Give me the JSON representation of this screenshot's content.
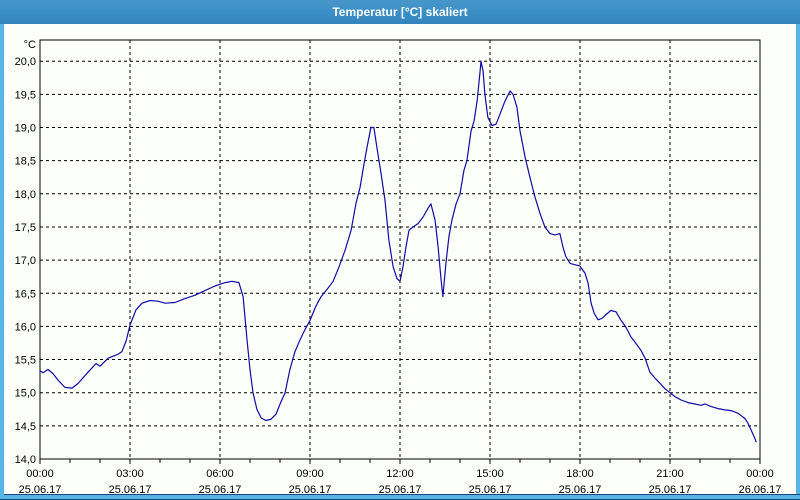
{
  "window": {
    "title": "Temperatur [°C] skaliert"
  },
  "colors": {
    "titlebar_blue": "#3a8ec6",
    "window_border": "#57b5e6",
    "window_border_dark_edge": "#14477a",
    "background": "#fdfffb",
    "line": "#0d0da8",
    "grid": "#000000",
    "text": "#000000",
    "title_text": "#ffffff"
  },
  "chart_data": {
    "type": "line",
    "title": "Temperatur [°C] skaliert",
    "xlabel": "",
    "ylabel": "°C",
    "unit_label": "°C",
    "grid": "dashed",
    "legend": "none",
    "ylim": [
      14.0,
      20.32
    ],
    "xlim_hours": [
      0,
      24
    ],
    "y_ticks": [
      {
        "value": 20.0,
        "label": "20,0"
      },
      {
        "value": 19.5,
        "label": "19,5"
      },
      {
        "value": 19.0,
        "label": "19,0"
      },
      {
        "value": 18.5,
        "label": "18,5"
      },
      {
        "value": 18.0,
        "label": "18,0"
      },
      {
        "value": 17.5,
        "label": "17,5"
      },
      {
        "value": 17.0,
        "label": "17,0"
      },
      {
        "value": 16.5,
        "label": "16,5"
      },
      {
        "value": 16.0,
        "label": "16,0"
      },
      {
        "value": 15.5,
        "label": "15,5"
      },
      {
        "value": 15.0,
        "label": "15,0"
      },
      {
        "value": 14.5,
        "label": "14,5"
      },
      {
        "value": 14.0,
        "label": "14,0"
      }
    ],
    "x_ticks": [
      {
        "hour": 0,
        "time": "00:00",
        "date": "25.06.17"
      },
      {
        "hour": 3,
        "time": "03:00",
        "date": "25.06.17"
      },
      {
        "hour": 6,
        "time": "06:00",
        "date": "25.06.17"
      },
      {
        "hour": 9,
        "time": "09:00",
        "date": "25.06.17"
      },
      {
        "hour": 12,
        "time": "12:00",
        "date": "25.06.17"
      },
      {
        "hour": 15,
        "time": "15:00",
        "date": "25.06.17"
      },
      {
        "hour": 18,
        "time": "18:00",
        "date": "25.06.17"
      },
      {
        "hour": 21,
        "time": "21:00",
        "date": "25.06.17"
      },
      {
        "hour": 24,
        "time": "00:00",
        "date": "26.06.17"
      }
    ],
    "minor_tick_every_hours": 1,
    "series": [
      {
        "name": "Temperatur",
        "color": "#0d0da8",
        "points": [
          [
            0.0,
            15.33
          ],
          [
            0.1,
            15.3
          ],
          [
            0.27,
            15.35
          ],
          [
            0.43,
            15.29
          ],
          [
            0.6,
            15.19
          ],
          [
            0.83,
            15.08
          ],
          [
            1.07,
            15.07
          ],
          [
            1.27,
            15.14
          ],
          [
            1.6,
            15.31
          ],
          [
            1.87,
            15.44
          ],
          [
            2.0,
            15.4
          ],
          [
            2.27,
            15.52
          ],
          [
            2.6,
            15.58
          ],
          [
            2.73,
            15.62
          ],
          [
            2.87,
            15.78
          ],
          [
            3.0,
            16.02
          ],
          [
            3.2,
            16.25
          ],
          [
            3.4,
            16.35
          ],
          [
            3.67,
            16.39
          ],
          [
            3.93,
            16.38
          ],
          [
            4.17,
            16.35
          ],
          [
            4.5,
            16.36
          ],
          [
            4.83,
            16.42
          ],
          [
            5.17,
            16.47
          ],
          [
            5.5,
            16.54
          ],
          [
            5.83,
            16.61
          ],
          [
            6.17,
            16.66
          ],
          [
            6.4,
            16.68
          ],
          [
            6.63,
            16.66
          ],
          [
            6.77,
            16.45
          ],
          [
            6.9,
            15.8
          ],
          [
            7.0,
            15.35
          ],
          [
            7.1,
            15.0
          ],
          [
            7.23,
            14.75
          ],
          [
            7.37,
            14.62
          ],
          [
            7.53,
            14.58
          ],
          [
            7.7,
            14.6
          ],
          [
            7.87,
            14.68
          ],
          [
            8.03,
            14.86
          ],
          [
            8.17,
            15.0
          ],
          [
            8.33,
            15.35
          ],
          [
            8.5,
            15.62
          ],
          [
            8.67,
            15.8
          ],
          [
            8.83,
            15.95
          ],
          [
            9.0,
            16.09
          ],
          [
            9.2,
            16.31
          ],
          [
            9.37,
            16.45
          ],
          [
            9.57,
            16.56
          ],
          [
            9.77,
            16.68
          ],
          [
            9.97,
            16.9
          ],
          [
            10.17,
            17.15
          ],
          [
            10.37,
            17.45
          ],
          [
            10.53,
            17.85
          ],
          [
            10.67,
            18.1
          ],
          [
            10.8,
            18.45
          ],
          [
            10.9,
            18.7
          ],
          [
            11.03,
            19.0
          ],
          [
            11.13,
            19.0
          ],
          [
            11.23,
            18.7
          ],
          [
            11.37,
            18.3
          ],
          [
            11.5,
            17.9
          ],
          [
            11.63,
            17.3
          ],
          [
            11.77,
            16.9
          ],
          [
            11.9,
            16.72
          ],
          [
            12.0,
            16.68
          ],
          [
            12.1,
            16.9
          ],
          [
            12.2,
            17.2
          ],
          [
            12.3,
            17.45
          ],
          [
            12.43,
            17.5
          ],
          [
            12.6,
            17.55
          ],
          [
            12.77,
            17.65
          ],
          [
            12.93,
            17.78
          ],
          [
            13.03,
            17.85
          ],
          [
            13.17,
            17.6
          ],
          [
            13.27,
            17.2
          ],
          [
            13.37,
            16.7
          ],
          [
            13.43,
            16.45
          ],
          [
            13.53,
            16.95
          ],
          [
            13.63,
            17.35
          ],
          [
            13.73,
            17.6
          ],
          [
            13.87,
            17.85
          ],
          [
            14.0,
            18.0
          ],
          [
            14.13,
            18.35
          ],
          [
            14.23,
            18.5
          ],
          [
            14.37,
            18.95
          ],
          [
            14.47,
            19.1
          ],
          [
            14.57,
            19.4
          ],
          [
            14.67,
            19.85
          ],
          [
            14.7,
            20.0
          ],
          [
            14.77,
            19.85
          ],
          [
            14.83,
            19.5
          ],
          [
            14.93,
            19.15
          ],
          [
            15.07,
            19.03
          ],
          [
            15.2,
            19.05
          ],
          [
            15.33,
            19.2
          ],
          [
            15.5,
            19.4
          ],
          [
            15.67,
            19.55
          ],
          [
            15.77,
            19.5
          ],
          [
            15.9,
            19.3
          ],
          [
            16.0,
            18.95
          ],
          [
            16.17,
            18.55
          ],
          [
            16.33,
            18.25
          ],
          [
            16.5,
            17.95
          ],
          [
            16.67,
            17.7
          ],
          [
            16.83,
            17.5
          ],
          [
            17.0,
            17.4
          ],
          [
            17.17,
            17.38
          ],
          [
            17.33,
            17.4
          ],
          [
            17.43,
            17.2
          ],
          [
            17.53,
            17.05
          ],
          [
            17.67,
            16.95
          ],
          [
            17.83,
            16.93
          ],
          [
            18.0,
            16.91
          ],
          [
            18.17,
            16.8
          ],
          [
            18.27,
            16.65
          ],
          [
            18.37,
            16.35
          ],
          [
            18.47,
            16.2
          ],
          [
            18.6,
            16.1
          ],
          [
            18.73,
            16.12
          ],
          [
            18.87,
            16.18
          ],
          [
            19.03,
            16.24
          ],
          [
            19.2,
            16.22
          ],
          [
            19.37,
            16.09
          ],
          [
            19.53,
            15.99
          ],
          [
            19.7,
            15.84
          ],
          [
            19.87,
            15.74
          ],
          [
            20.03,
            15.64
          ],
          [
            20.17,
            15.52
          ],
          [
            20.33,
            15.31
          ],
          [
            20.5,
            15.22
          ],
          [
            20.67,
            15.14
          ],
          [
            20.83,
            15.06
          ],
          [
            20.97,
            15.01
          ],
          [
            21.17,
            14.94
          ],
          [
            21.37,
            14.89
          ],
          [
            21.6,
            14.85
          ],
          [
            21.83,
            14.83
          ],
          [
            22.03,
            14.81
          ],
          [
            22.17,
            14.83
          ],
          [
            22.37,
            14.79
          ],
          [
            22.6,
            14.76
          ],
          [
            22.83,
            14.74
          ],
          [
            23.03,
            14.73
          ],
          [
            23.27,
            14.69
          ],
          [
            23.5,
            14.61
          ],
          [
            23.6,
            14.54
          ],
          [
            23.7,
            14.44
          ],
          [
            23.83,
            14.31
          ],
          [
            23.87,
            14.26
          ]
        ]
      }
    ]
  }
}
